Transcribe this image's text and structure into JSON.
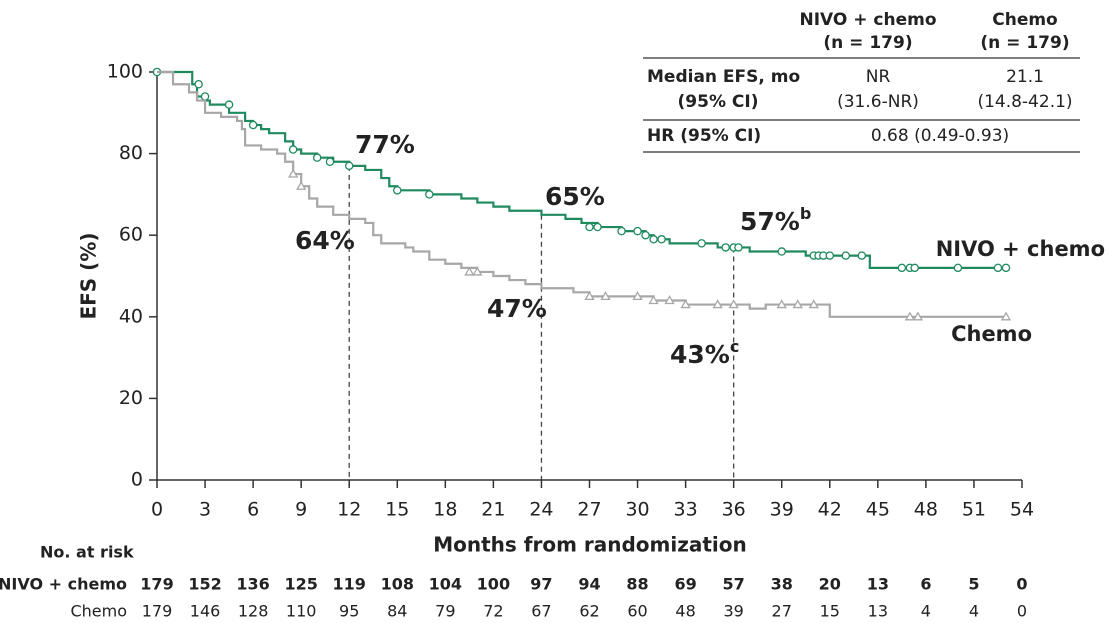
{
  "chart_data": {
    "type": "km",
    "xlabel": "Months from randomization",
    "ylabel": "EFS (%)",
    "xlim": [
      0,
      54
    ],
    "ylim": [
      0,
      100
    ],
    "xticks": [
      0,
      3,
      6,
      9,
      12,
      15,
      18,
      21,
      24,
      27,
      30,
      33,
      36,
      39,
      42,
      45,
      48,
      51,
      54
    ],
    "yticks": [
      0,
      20,
      40,
      60,
      80,
      100
    ],
    "series": [
      {
        "name": "NIVO + chemo",
        "color": "#1e8a5e",
        "marker": "circle",
        "x": [
          0,
          2.2,
          2.5,
          3,
          3.3,
          4.5,
          5.5,
          6,
          6.5,
          7,
          8,
          8.5,
          9,
          10,
          11,
          12,
          13,
          14,
          14.5,
          15,
          17,
          19,
          20,
          21,
          22,
          24,
          25.5,
          26.5,
          27.5,
          29,
          30.5,
          31,
          32,
          35,
          37,
          40.5,
          44.5,
          53
        ],
        "values": [
          100,
          97,
          94,
          93,
          92,
          90,
          88,
          87,
          86,
          85,
          83,
          81,
          80,
          79,
          78,
          77,
          76,
          74,
          72,
          71,
          70,
          69,
          68,
          67,
          66,
          65,
          64,
          63,
          62,
          61,
          60,
          59,
          58,
          57,
          56,
          55,
          52,
          52
        ],
        "censored_x": [
          0,
          2.6,
          3,
          4.5,
          6,
          8.5,
          10,
          10.8,
          12,
          15,
          17,
          27,
          27.5,
          29,
          30,
          30.5,
          31,
          31.5,
          34,
          35.5,
          36,
          36.3,
          39,
          41,
          41.3,
          41.6,
          42,
          43,
          44,
          46.5,
          47,
          47.3,
          50,
          52.5,
          53
        ],
        "censored_values": [
          100,
          97,
          94,
          92,
          87,
          81,
          79,
          78,
          77,
          71,
          70,
          62,
          62,
          61,
          61,
          60,
          59,
          59,
          58,
          57,
          57,
          57,
          56,
          55,
          55,
          55,
          55,
          55,
          55,
          52,
          52,
          52,
          52,
          52,
          52
        ]
      },
      {
        "name": "Chemo",
        "color": "#a8a6a6",
        "marker": "triangle",
        "x": [
          0,
          1,
          2,
          2.5,
          3,
          4,
          5,
          5.3,
          5.5,
          6.5,
          7.5,
          8,
          8.5,
          9,
          9.5,
          10,
          11,
          12,
          13,
          13.5,
          14,
          15.5,
          16,
          17,
          18,
          19,
          20,
          21,
          22,
          23,
          24,
          26,
          27,
          31,
          33,
          37,
          38,
          42,
          53
        ],
        "values": [
          100,
          97,
          95,
          93,
          90,
          89,
          88,
          86,
          82,
          81,
          80,
          78,
          75,
          72,
          69,
          67,
          65,
          64,
          63,
          60,
          58,
          57,
          56,
          54,
          53,
          52,
          51,
          50,
          49,
          48,
          47,
          46,
          45,
          44,
          43,
          42,
          43,
          40,
          40
        ],
        "censored_x": [
          8.5,
          9,
          19.5,
          20,
          27,
          28,
          30,
          31,
          32,
          33,
          35,
          36,
          39,
          40,
          41,
          47,
          47.5,
          53
        ],
        "censored_values": [
          75,
          72,
          51,
          51,
          45,
          45,
          45,
          44,
          44,
          43,
          43,
          43,
          43,
          43,
          43,
          40,
          40,
          40
        ]
      }
    ],
    "reference_lines": [
      {
        "x": 12,
        "y": 77
      },
      {
        "x": 24,
        "y": 65
      },
      {
        "x": 36,
        "y": 57
      }
    ],
    "annotations": [
      {
        "label": "77%",
        "color": "#1e8a5e"
      },
      {
        "label": "64%",
        "color": "#a8a6a6"
      },
      {
        "label": "65%",
        "color": "#1e8a5e"
      },
      {
        "label": "47%",
        "color": "#a8a6a6"
      },
      {
        "label": "57%",
        "sup": "b",
        "color": "#1e8a5e"
      },
      {
        "label": "43%",
        "sup": "c",
        "color": "#a8a6a6"
      }
    ],
    "summary_table": {
      "columns": [
        [
          "NIVO + chemo",
          "(n = 179)"
        ],
        [
          "Chemo",
          "(n = 179)"
        ]
      ],
      "rows": [
        {
          "label": [
            "Median EFS, mo",
            "(95% CI)"
          ],
          "cells": [
            [
              "NR",
              "(31.6-NR)"
            ],
            [
              "21.1",
              "(14.8-42.1)"
            ]
          ]
        },
        {
          "label": [
            "HR (95% CI)"
          ],
          "cells": [
            [
              "0.68 (0.49-0.93)"
            ]
          ]
        }
      ]
    },
    "risk_table": {
      "title": "No. at risk",
      "rows": [
        {
          "name": "NIVO + chemo",
          "values": [
            179,
            152,
            136,
            125,
            119,
            108,
            104,
            100,
            97,
            94,
            88,
            69,
            57,
            38,
            20,
            13,
            6,
            5,
            0
          ]
        },
        {
          "name": "Chemo",
          "values": [
            179,
            146,
            128,
            110,
            95,
            84,
            79,
            72,
            67,
            62,
            60,
            48,
            39,
            27,
            15,
            13,
            4,
            4,
            0
          ]
        }
      ]
    }
  }
}
